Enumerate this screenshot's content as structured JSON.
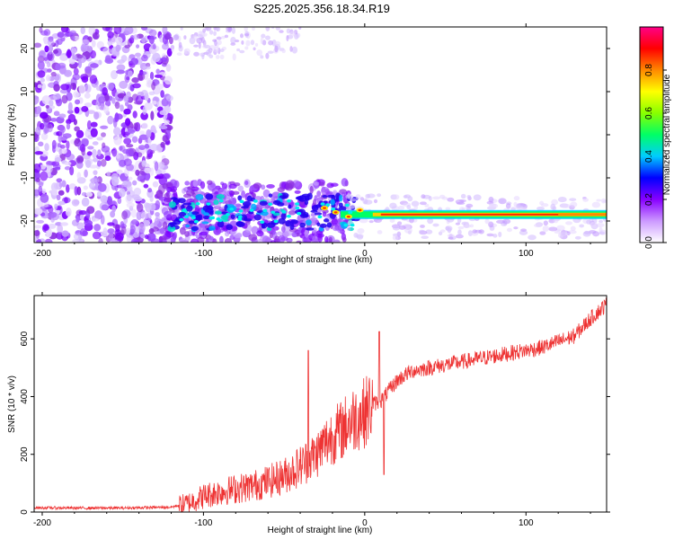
{
  "title": "S225.2025.356.18.34.R19",
  "chart_data": [
    {
      "type": "heatmap",
      "name": "spectrogram",
      "xlabel": "Height of straight line (km)",
      "ylabel": "Frequency (Hz)",
      "xlim": [
        -205,
        150
      ],
      "ylim": [
        -25,
        25
      ],
      "xticks": [
        -200,
        -100,
        0,
        100
      ],
      "yticks": [
        -20,
        -10,
        0,
        10,
        20
      ],
      "tone_track": {
        "description": "dominant tone near -18.5 Hz from about -120 km to 150 km",
        "start_km": -125,
        "end_km": 150,
        "frequency_hz": -18.5
      },
      "colorbar": {
        "label": "Normalized spectral amplitude",
        "range": [
          0,
          1
        ],
        "ticks": [
          "0.0",
          "0.2",
          "0.4",
          "0.6",
          "0.8"
        ],
        "colors": [
          "#ffffff",
          "#cc99ff",
          "#8800ff",
          "#0000ff",
          "#00ccff",
          "#00ff66",
          "#88ff00",
          "#ffff00",
          "#ff8800",
          "#ff0000",
          "#ff0088"
        ]
      }
    },
    {
      "type": "line",
      "name": "snr",
      "xlabel": "Height of straight line (km)",
      "ylabel": "SNR (10 * v/v)",
      "xlim": [
        -205,
        150
      ],
      "ylim": [
        0,
        750
      ],
      "xticks": [
        -200,
        -100,
        0,
        100
      ],
      "yticks": [
        0,
        200,
        400,
        600
      ],
      "color": "#ee3333",
      "series": [
        {
          "name": "SNR",
          "x": [
            -205,
            -180,
            -150,
            -120,
            -110,
            -100,
            -90,
            -80,
            -70,
            -60,
            -50,
            -40,
            -30,
            -25,
            -20,
            -15,
            -10,
            -5,
            0,
            5,
            10,
            15,
            20,
            25,
            30,
            40,
            50,
            60,
            70,
            80,
            90,
            100,
            110,
            120,
            130,
            140,
            150
          ],
          "values": [
            15,
            14,
            14,
            17,
            30,
            55,
            70,
            80,
            90,
            105,
            125,
            160,
            200,
            235,
            265,
            280,
            310,
            330,
            345,
            375,
            385,
            420,
            455,
            475,
            490,
            500,
            510,
            520,
            530,
            540,
            550,
            560,
            570,
            590,
            610,
            670,
            720
          ]
        }
      ]
    }
  ]
}
